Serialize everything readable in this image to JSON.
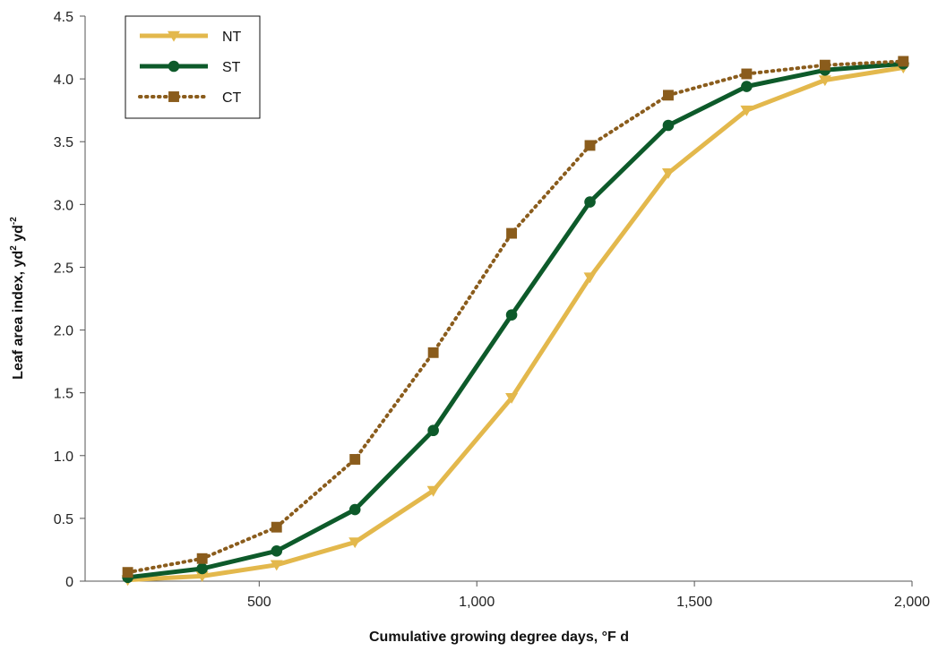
{
  "chart_data": {
    "type": "line",
    "title": "",
    "xlabel": "Cumulative growing degree days, °F d",
    "ylabel": {
      "text": "Leaf area index, yd",
      "sup1": "2",
      "mid": " yd",
      "sup2": "-2"
    },
    "xlim": [
      100,
      2000
    ],
    "ylim": [
      0,
      4.5
    ],
    "x_ticks": [
      {
        "value": 500,
        "label": "500"
      },
      {
        "value": 1000,
        "label": "1,000"
      },
      {
        "value": 1500,
        "label": "1,500"
      },
      {
        "value": 2000,
        "label": "2,000"
      }
    ],
    "y_ticks": [
      {
        "value": 0,
        "label": "0"
      },
      {
        "value": 0.5,
        "label": "0.5"
      },
      {
        "value": 1.0,
        "label": "1.0"
      },
      {
        "value": 1.5,
        "label": "1.5"
      },
      {
        "value": 2.0,
        "label": "2.0"
      },
      {
        "value": 2.5,
        "label": "2.5"
      },
      {
        "value": 3.0,
        "label": "3.0"
      },
      {
        "value": 3.5,
        "label": "3.5"
      },
      {
        "value": 4.0,
        "label": "4.0"
      },
      {
        "value": 4.5,
        "label": "4.5"
      }
    ],
    "grid": false,
    "legend": "top-left",
    "series": [
      {
        "name": "NT",
        "color": "#e3b84c",
        "line": "solid",
        "marker": "triangle-down",
        "x": [
          198,
          369,
          540,
          720,
          900,
          1080,
          1260,
          1440,
          1620,
          1800,
          1980
        ],
        "y": [
          0.01,
          0.04,
          0.13,
          0.31,
          0.72,
          1.46,
          2.42,
          3.25,
          3.75,
          3.99,
          4.09
        ]
      },
      {
        "name": "ST",
        "color": "#0d5a2a",
        "line": "solid",
        "marker": "circle",
        "x": [
          198,
          369,
          540,
          720,
          900,
          1080,
          1260,
          1440,
          1620,
          1800,
          1980
        ],
        "y": [
          0.03,
          0.1,
          0.24,
          0.57,
          1.2,
          2.12,
          3.02,
          3.63,
          3.94,
          4.07,
          4.12
        ]
      },
      {
        "name": "CT",
        "color": "#8a5c1c",
        "line": "dotted",
        "marker": "square",
        "x": [
          198,
          369,
          540,
          720,
          900,
          1080,
          1260,
          1440,
          1620,
          1800,
          1980
        ],
        "y": [
          0.07,
          0.18,
          0.43,
          0.97,
          1.82,
          2.77,
          3.47,
          3.87,
          4.04,
          4.11,
          4.14
        ]
      }
    ]
  }
}
